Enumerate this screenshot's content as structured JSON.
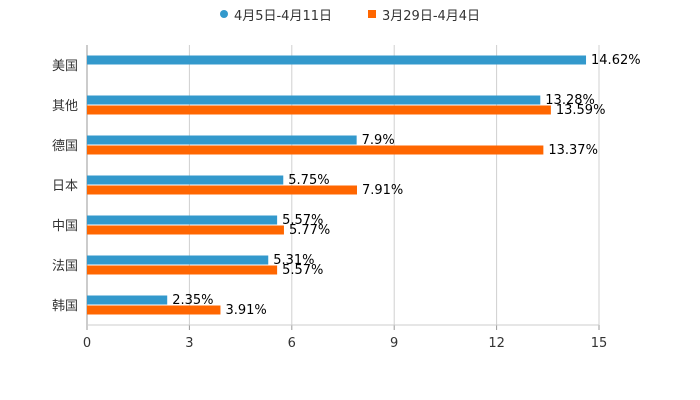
{
  "chart_data": {
    "type": "bar",
    "orientation": "horizontal",
    "categories": [
      "美国",
      "其他",
      "德国",
      "日本",
      "中国",
      "法国",
      "韩国"
    ],
    "series": [
      {
        "name": "4月5日-4月11日",
        "color": "#3399cc",
        "values": [
          14.62,
          13.28,
          7.9,
          5.75,
          5.57,
          5.31,
          2.35
        ],
        "labels": [
          "14.62%",
          "13.28%",
          "7.9%",
          "5.75%",
          "5.57%",
          "5.31%",
          "2.35%"
        ]
      },
      {
        "name": "3月29日-4月4日",
        "color": "#ff6600",
        "values": [
          null,
          13.59,
          13.37,
          7.91,
          5.77,
          5.57,
          3.91
        ],
        "labels": [
          null,
          "13.59%",
          "13.37%",
          "7.91%",
          "5.77%",
          "5.57%",
          "3.91%"
        ]
      }
    ],
    "xticks": [
      "0",
      "3",
      "6",
      "9",
      "12",
      "15"
    ],
    "xlim": [
      0,
      15
    ],
    "grid": true,
    "legend_position": "top-center"
  }
}
